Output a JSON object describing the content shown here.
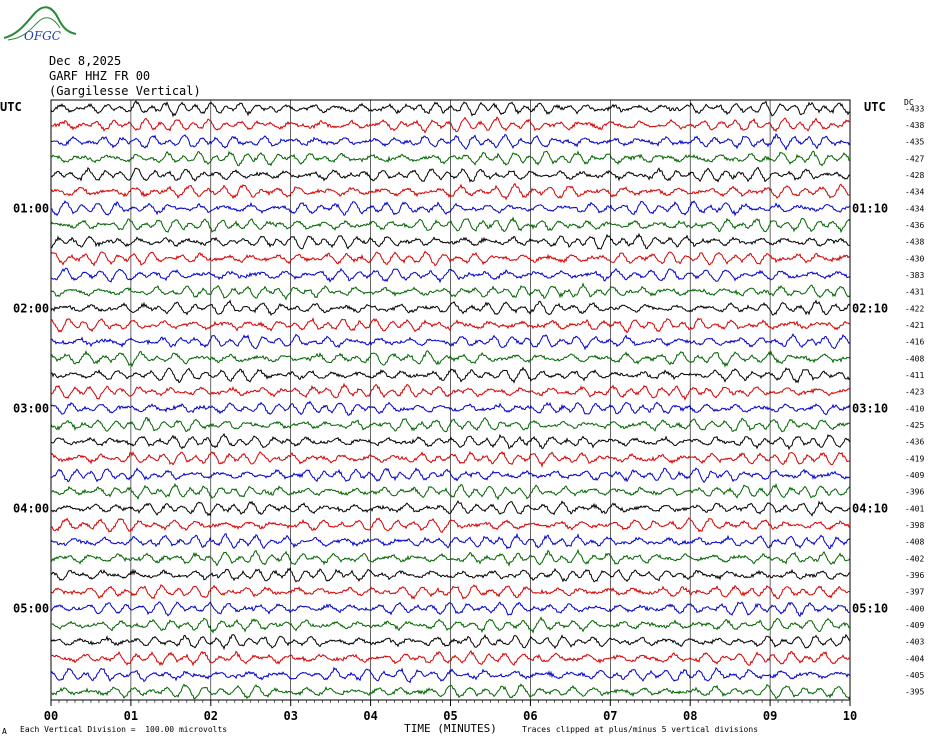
{
  "header": {
    "logo_text": "OFGC",
    "date": "Dec 8,2025",
    "station": "GARF HHZ FR 00",
    "location": "(Gargilesse Vertical)",
    "utc_left": "UTC",
    "utc_right": "UTC",
    "dc_label": "DC"
  },
  "footer": {
    "vertical_division": "Each Vertical Division =  100.00 microvolts",
    "clip_note": "Traces clipped at plus/minus 5 vertical divisions",
    "corner_mark": "A"
  },
  "colors": {
    "cycle": [
      "#000000",
      "#d40000",
      "#0000c8",
      "#006400"
    ],
    "grid": "#000000"
  },
  "chart_data": {
    "type": "line",
    "title": "",
    "xlabel": "TIME (MINUTES)",
    "ylabel": "",
    "xlim": [
      0,
      10
    ],
    "x_ticks": [
      "00",
      "01",
      "02",
      "03",
      "04",
      "05",
      "06",
      "07",
      "08",
      "09",
      "10"
    ],
    "grid": true,
    "left_time_labels": [
      {
        "row": 6,
        "label": "01:00"
      },
      {
        "row": 12,
        "label": "02:00"
      },
      {
        "row": 18,
        "label": "03:00"
      },
      {
        "row": 24,
        "label": "04:00"
      },
      {
        "row": 30,
        "label": "05:00"
      }
    ],
    "right_time_labels": [
      {
        "row": 6,
        "label": "01:10"
      },
      {
        "row": 12,
        "label": "02:10"
      },
      {
        "row": 18,
        "label": "03:10"
      },
      {
        "row": 24,
        "label": "04:10"
      },
      {
        "row": 30,
        "label": "05:10"
      }
    ],
    "dc_offsets": [
      -433,
      -438,
      -435,
      -427,
      -428,
      -434,
      -434,
      -436,
      -438,
      -430,
      -383,
      -431,
      -422,
      -421,
      -416,
      -408,
      -411,
      -423,
      -410,
      -425,
      -436,
      -419,
      -409,
      -396,
      -401,
      -398,
      -408,
      -402,
      -396,
      -397,
      -400,
      -409,
      -403,
      -404,
      -405,
      -395
    ],
    "trace_count": 36
  }
}
